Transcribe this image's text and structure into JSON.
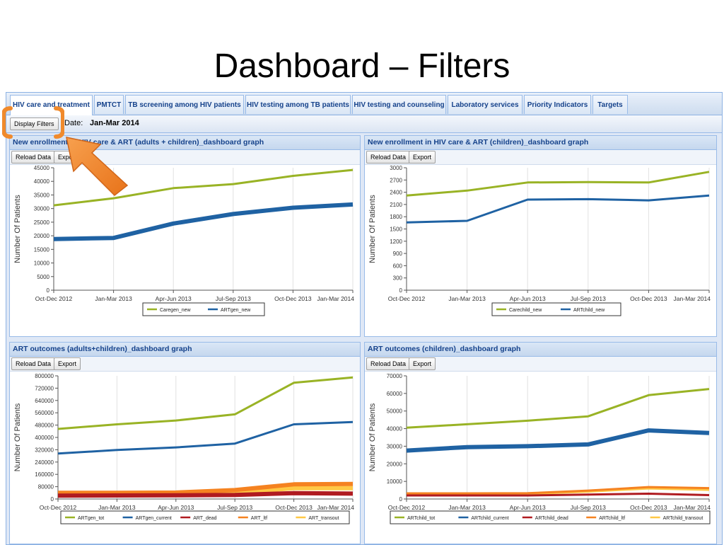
{
  "slide_title": "Dashboard – Filters",
  "tabs": [
    {
      "label": "HIV care and treatment",
      "active": true
    },
    {
      "label": "PMTCT"
    },
    {
      "label": "TB screening among HIV patients"
    },
    {
      "label": "HIV testing among TB patients"
    },
    {
      "label": "HIV testing and counseling"
    },
    {
      "label": "Laboratory services"
    },
    {
      "label": "Priority Indicators"
    },
    {
      "label": "Targets"
    }
  ],
  "toolbar": {
    "display_filters_label": "Display Filters",
    "date_label": "Date:",
    "date_value": "Jan-Mar 2014"
  },
  "panel_buttons": {
    "reload": "Reload Data",
    "export": "Export"
  },
  "colors": {
    "green": "#99b325",
    "blue": "#1f62a3",
    "red": "#b01b20",
    "orange": "#f58220",
    "yellow": "#ffc845",
    "highlight": "#f08a2c"
  },
  "panels": [
    {
      "title": "New enrollment in HIV care & ART (adults + children)_dashboard graph"
    },
    {
      "title": "New enrollment in HIV care & ART (children)_dashboard graph"
    },
    {
      "title": "ART outcomes (adults+children)_dashboard graph"
    },
    {
      "title": "ART outcomes (children)_dashboard graph"
    }
  ],
  "chart_data": [
    {
      "type": "line",
      "x": [
        "Oct-Dec 2012",
        "Jan-Mar 2013",
        "Apr-Jun 2013",
        "Jul-Sep 2013",
        "Oct-Dec 2013",
        "Jan-Mar 2014"
      ],
      "ylabel": "Number Of Patients",
      "ylim": [
        0,
        45000
      ],
      "yticks": [
        0,
        5000,
        10000,
        15000,
        20000,
        25000,
        30000,
        35000,
        40000,
        45000
      ],
      "series": [
        {
          "name": "Caregen_new",
          "color": "green",
          "width": 3,
          "values": [
            31200,
            33800,
            37500,
            39000,
            42000,
            44200
          ]
        },
        {
          "name": "ARTgen_new",
          "color": "blue",
          "width": 6,
          "values": [
            18800,
            19200,
            24500,
            28000,
            30300,
            31500
          ]
        }
      ]
    },
    {
      "type": "line",
      "x": [
        "Oct-Dec 2012",
        "Jan-Mar 2013",
        "Apr-Jun 2013",
        "Jul-Sep 2013",
        "Oct-Dec 2013",
        "Jan-Mar 2014"
      ],
      "ylabel": "Number Of Patients",
      "ylim": [
        0,
        3000
      ],
      "yticks": [
        0,
        300,
        600,
        900,
        1200,
        1500,
        1800,
        2100,
        2400,
        2700,
        3000
      ],
      "series": [
        {
          "name": "Carechild_new",
          "color": "green",
          "width": 3,
          "values": [
            2320,
            2440,
            2640,
            2650,
            2640,
            2900
          ]
        },
        {
          "name": "ARTchild_new",
          "color": "blue",
          "width": 3,
          "values": [
            1660,
            1700,
            2220,
            2230,
            2200,
            2320
          ]
        }
      ]
    },
    {
      "type": "line",
      "x": [
        "Oct-Dec 2012",
        "Jan-Mar 2013",
        "Apr-Jun 2013",
        "Jul-Sep 2013",
        "Oct-Dec 2013",
        "Jan-Mar 2014"
      ],
      "ylabel": "Number Of Patients",
      "ylim": [
        0,
        800000
      ],
      "yticks": [
        0,
        80000,
        160000,
        240000,
        320000,
        400000,
        480000,
        560000,
        640000,
        720000,
        800000
      ],
      "series": [
        {
          "name": "ARTgen_tot",
          "color": "green",
          "width": 3,
          "values": [
            455000,
            485000,
            510000,
            550000,
            755000,
            790000
          ]
        },
        {
          "name": "ARTgen_current",
          "color": "blue",
          "width": 3,
          "values": [
            295000,
            318000,
            335000,
            360000,
            485000,
            500000
          ]
        },
        {
          "name": "ART_dead",
          "color": "red",
          "width": 6,
          "values": [
            22000,
            23000,
            24000,
            26000,
            38000,
            35000
          ]
        },
        {
          "name": "ART_ltf",
          "color": "orange",
          "width": 6,
          "values": [
            40000,
            40000,
            42000,
            58000,
            95000,
            98000
          ]
        },
        {
          "name": "ART_transout",
          "color": "yellow",
          "width": 6,
          "values": [
            28000,
            28000,
            30000,
            42000,
            70000,
            70000
          ]
        }
      ]
    },
    {
      "type": "line",
      "x": [
        "Oct-Dec 2012",
        "Jan-Mar 2013",
        "Apr-Jun 2013",
        "Jul-Sep 2013",
        "Oct-Dec 2013",
        "Jan-Mar 2014"
      ],
      "ylabel": "Number Of Patients",
      "ylim": [
        0,
        70000
      ],
      "yticks": [
        0,
        10000,
        20000,
        30000,
        40000,
        50000,
        60000,
        70000
      ],
      "series": [
        {
          "name": "ARTchild_tot",
          "color": "green",
          "width": 3,
          "values": [
            40500,
            42500,
            44500,
            47000,
            59000,
            62500
          ]
        },
        {
          "name": "ARTchild_current",
          "color": "blue",
          "width": 6,
          "values": [
            27500,
            29500,
            30000,
            31000,
            39000,
            37500
          ]
        },
        {
          "name": "ARTchild_dead",
          "color": "red",
          "width": 3,
          "values": [
            2000,
            2000,
            2000,
            2500,
            3000,
            2200
          ]
        },
        {
          "name": "ARTchild_ltf",
          "color": "orange",
          "width": 3,
          "values": [
            3200,
            3200,
            3300,
            4800,
            6800,
            6200
          ]
        },
        {
          "name": "ARTchild_transout",
          "color": "yellow",
          "width": 3,
          "values": [
            2800,
            2800,
            2900,
            4200,
            6000,
            5200
          ]
        }
      ]
    }
  ]
}
